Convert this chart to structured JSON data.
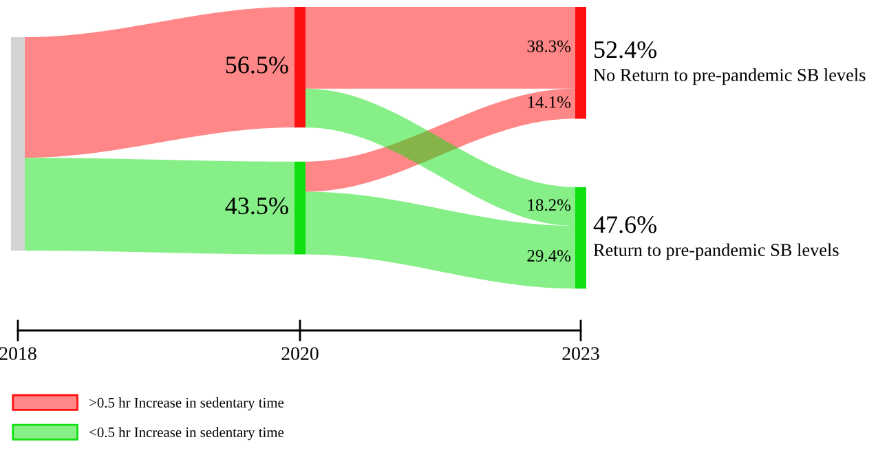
{
  "chart_data": {
    "type": "other",
    "categories": [
      "2018",
      "2020",
      "2023"
    ],
    "series": [
      {
        "name": ">0.5 hr Increase in sedentary time",
        "color": "#ff1010",
        "values": [
          null,
          56.5,
          52.4
        ],
        "value_labels": [
          null,
          "56.5%",
          "52.4%"
        ]
      },
      {
        "name": "<0.5 hr Increase in sedentary time",
        "color": "#10e010",
        "values": [
          null,
          43.5,
          47.6
        ],
        "value_labels": [
          null,
          "43.5%",
          "47.6%"
        ]
      },
      {
        "color": "#ff1010",
        "values": [
          null,
          null,
          38.3
        ],
        "value_labels": [
          null,
          null,
          "38.3%"
        ]
      },
      {
        "color": "#10e010",
        "values": [
          null,
          null,
          18.2
        ],
        "value_labels": [
          null,
          null,
          "18.2%"
        ]
      },
      {
        "color": "#ff1010",
        "values": [
          null,
          null,
          14.1
        ],
        "value_labels": [
          null,
          null,
          "14.1%"
        ]
      },
      {
        "color": "#10e010",
        "values": [
          null,
          null,
          29.4
        ],
        "value_labels": [
          null,
          null,
          "29.4%"
        ]
      }
    ],
    "annotations": [
      "No Return to pre-pandemic SB levels",
      "Return to pre-pandemic SB levels"
    ],
    "legend": "bottom left"
  }
}
